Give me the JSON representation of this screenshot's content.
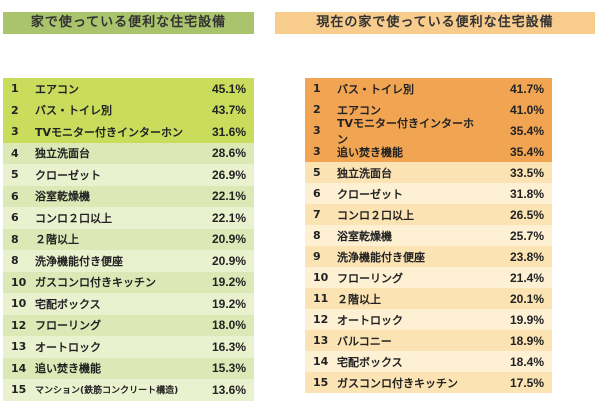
{
  "left": {
    "title": "家で使っている便利な住宅設備",
    "highlight": "#c9dc5c",
    "alt": [
      "#dce9b6",
      "#e9f1cf"
    ],
    "title_color": "#a9c46c",
    "rows": [
      [
        "1",
        "エアコン",
        "45.1%"
      ],
      [
        "2",
        "バス・トイレ別",
        "43.7%"
      ],
      [
        "3",
        "TVモニター付きインターホン",
        "31.6%"
      ],
      [
        "4",
        "独立洗面台",
        "28.6%"
      ],
      [
        "5",
        "クローゼット",
        "26.9%"
      ],
      [
        "6",
        "浴室乾燥機",
        "22.1%"
      ],
      [
        "6",
        "コンロ２口以上",
        "22.1%"
      ],
      [
        "8",
        "２階以上",
        "20.9%"
      ],
      [
        "8",
        "洗浄機能付き便座",
        "20.9%"
      ],
      [
        "10",
        "ガスコンロ付きキッチン",
        "19.2%"
      ],
      [
        "10",
        "宅配ボックス",
        "19.2%"
      ],
      [
        "12",
        "フローリング",
        "18.0%"
      ],
      [
        "13",
        "オートロック",
        "16.3%"
      ],
      [
        "14",
        "追い焚き機能",
        "15.3%"
      ],
      [
        "15",
        "マンション(鉄筋コンクリート構造)",
        "13.6%"
      ]
    ],
    "highlight_count": 3
  },
  "right": {
    "title": "現在の家で使っている便利な住宅設備",
    "highlight": "#f1a552",
    "alt": [
      "#fbe3b3",
      "#fdf0d3"
    ],
    "title_color": "#f7cc8c",
    "rows": [
      [
        "1",
        "バス・トイレ別",
        "41.7%"
      ],
      [
        "2",
        "エアコン",
        "41.0%"
      ],
      [
        "3",
        "TVモニター付きインターホン",
        "35.4%"
      ],
      [
        "3",
        "追い焚き機能",
        "35.4%"
      ],
      [
        "5",
        "独立洗面台",
        "33.5%"
      ],
      [
        "6",
        "クローゼット",
        "31.8%"
      ],
      [
        "7",
        "コンロ２口以上",
        "26.5%"
      ],
      [
        "8",
        "浴室乾燥機",
        "25.7%"
      ],
      [
        "9",
        "洗浄機能付き便座",
        "23.8%"
      ],
      [
        "10",
        "フローリング",
        "21.4%"
      ],
      [
        "11",
        "２階以上",
        "20.1%"
      ],
      [
        "12",
        "オートロック",
        "19.9%"
      ],
      [
        "13",
        "バルコニー",
        "18.9%"
      ],
      [
        "14",
        "宅配ボックス",
        "18.4%"
      ],
      [
        "15",
        "ガスコンロ付きキッチン",
        "17.5%"
      ]
    ],
    "highlight_count": 4
  }
}
